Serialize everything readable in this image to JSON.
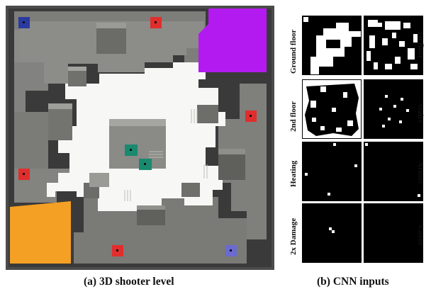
{
  "captions": {
    "level": "(a) 3D shooter level",
    "cnn": "(b) CNN inputs"
  },
  "cnn_inputs": {
    "left_labels": [
      "Ground floor",
      "2nd floor",
      "Heating",
      "2x Damage"
    ],
    "right_labels": [
      "1st floor",
      "Stairs",
      "Armor",
      "Cover"
    ]
  },
  "colors": {
    "frame": "#4a4a4a",
    "floor_light": "#f8f8f6",
    "floor_gray": "#8a8a86",
    "spawn_purple": "#b31af0",
    "spawn_orange": "#f4a024",
    "pickup_red": "#e22d2d",
    "pickup_blue": "#2a3aa0",
    "pickup_teal": "#198a6e",
    "pickup_periwinkle": "#6a6ad0"
  }
}
